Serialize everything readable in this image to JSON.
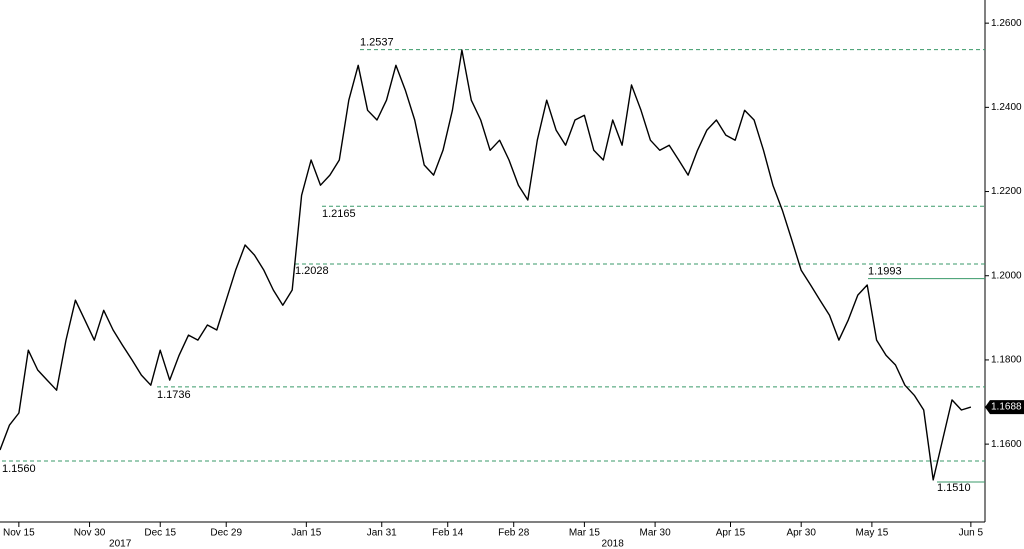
{
  "chart_data": {
    "type": "line",
    "series": [
      {
        "color": "#000000",
        "x": [
          "2017-11-11",
          "2017-11-13",
          "2017-11-15",
          "2017-11-17",
          "2017-11-19",
          "2017-11-21",
          "2017-11-23",
          "2017-11-25",
          "2017-11-27",
          "2017-11-29",
          "2017-12-01",
          "2017-12-03",
          "2017-12-05",
          "2017-12-07",
          "2017-12-09",
          "2017-12-11",
          "2017-12-13",
          "2017-12-15",
          "2017-12-17",
          "2017-12-19",
          "2017-12-21",
          "2017-12-23",
          "2017-12-25",
          "2017-12-27",
          "2017-12-29",
          "2017-12-31",
          "2018-01-02",
          "2018-01-04",
          "2018-01-06",
          "2018-01-08",
          "2018-01-10",
          "2018-01-12",
          "2018-01-14",
          "2018-01-16",
          "2018-01-18",
          "2018-01-20",
          "2018-01-22",
          "2018-01-24",
          "2018-01-26",
          "2018-01-28",
          "2018-01-30",
          "2018-02-01",
          "2018-02-03",
          "2018-02-05",
          "2018-02-07",
          "2018-02-09",
          "2018-02-11",
          "2018-02-13",
          "2018-02-15",
          "2018-02-17",
          "2018-02-19",
          "2018-02-21",
          "2018-02-23",
          "2018-02-25",
          "2018-02-27",
          "2018-03-01",
          "2018-03-03",
          "2018-03-05",
          "2018-03-07",
          "2018-03-09",
          "2018-03-11",
          "2018-03-13",
          "2018-03-15",
          "2018-03-17",
          "2018-03-19",
          "2018-03-21",
          "2018-03-23",
          "2018-03-25",
          "2018-03-27",
          "2018-03-29",
          "2018-03-31",
          "2018-04-02",
          "2018-04-04",
          "2018-04-06",
          "2018-04-08",
          "2018-04-10",
          "2018-04-12",
          "2018-04-14",
          "2018-04-16",
          "2018-04-18",
          "2018-04-20",
          "2018-04-22",
          "2018-04-24",
          "2018-04-26",
          "2018-04-28",
          "2018-04-30",
          "2018-05-02",
          "2018-05-04",
          "2018-05-06",
          "2018-05-08",
          "2018-05-10",
          "2018-05-12",
          "2018-05-14",
          "2018-05-16",
          "2018-05-18",
          "2018-05-20",
          "2018-05-22",
          "2018-05-24",
          "2018-05-26",
          "2018-05-28",
          "2018-05-30",
          "2018-06-01",
          "2018-06-03",
          "2018-06-05"
        ],
        "values": [
          1.1586,
          1.1645,
          1.1674,
          1.1823,
          1.1776,
          1.1752,
          1.1728,
          1.1847,
          1.1942,
          1.1895,
          1.1847,
          1.1918,
          1.1871,
          1.1835,
          1.18,
          1.1764,
          1.174,
          1.1823,
          1.1752,
          1.1811,
          1.1859,
          1.1847,
          1.1883,
          1.1871,
          1.1942,
          1.2013,
          1.2073,
          1.2049,
          1.2013,
          1.1966,
          1.193,
          1.1966,
          1.2191,
          1.2275,
          1.2215,
          1.2239,
          1.2275,
          1.2417,
          1.25,
          1.2393,
          1.237,
          1.2417,
          1.25,
          1.2441,
          1.237,
          1.2263,
          1.2239,
          1.2298,
          1.2393,
          1.2536,
          1.2417,
          1.237,
          1.2298,
          1.2322,
          1.2275,
          1.2215,
          1.218,
          1.2322,
          1.2417,
          1.2346,
          1.231,
          1.237,
          1.2381,
          1.2298,
          1.2275,
          1.237,
          1.231,
          1.2453,
          1.2393,
          1.2322,
          1.2298,
          1.231,
          1.2275,
          1.2239,
          1.2298,
          1.2346,
          1.237,
          1.2334,
          1.2322,
          1.2393,
          1.237,
          1.2298,
          1.2215,
          1.2156,
          1.2085,
          1.2013,
          1.1978,
          1.1942,
          1.1906,
          1.1847,
          1.1895,
          1.1954,
          1.1978,
          1.1847,
          1.1811,
          1.1788,
          1.174,
          1.1716,
          1.1681,
          1.1515,
          1.161,
          1.1705,
          1.1681,
          1.1688
        ]
      }
    ],
    "xlim": [
      "2017-11-11",
      "2018-06-08"
    ],
    "xticks": [
      {
        "value": "2017-11-15",
        "label": "Nov 15"
      },
      {
        "value": "2017-11-30",
        "label": "Nov 30"
      },
      {
        "value": "2017-12-15",
        "label": "Dec 15"
      },
      {
        "value": "2017-12-29",
        "label": "Dec 29"
      },
      {
        "value": "2018-01-15",
        "label": "Jan 15"
      },
      {
        "value": "2018-01-31",
        "label": "Jan 31"
      },
      {
        "value": "2018-02-14",
        "label": "Feb 14"
      },
      {
        "value": "2018-02-28",
        "label": "Feb 28"
      },
      {
        "value": "2018-03-15",
        "label": "Mar 15"
      },
      {
        "value": "2018-03-30",
        "label": "Mar 30"
      },
      {
        "value": "2018-04-15",
        "label": "Apr 15"
      },
      {
        "value": "2018-04-30",
        "label": "Apr 30"
      },
      {
        "value": "2018-05-15",
        "label": "May 15"
      },
      {
        "value": "2018-06-05",
        "label": "Jun 5"
      }
    ],
    "years": [
      2017,
      2018
    ],
    "ylim": [
      1.1415,
      1.2655
    ],
    "yticks": [
      {
        "value": 1.16,
        "label": "1.1600"
      },
      {
        "value": 1.18,
        "label": "1.1800"
      },
      {
        "value": 1.2,
        "label": "1.2000"
      },
      {
        "value": 1.22,
        "label": "1.2200"
      },
      {
        "value": 1.24,
        "label": "1.2400"
      },
      {
        "value": 1.26,
        "label": "1.2600"
      }
    ],
    "levels": [
      {
        "value": 1.2537,
        "label": "1.2537",
        "style": "dashed"
      },
      {
        "value": 1.2165,
        "label": "1.2165",
        "style": "dashed"
      },
      {
        "value": 1.2028,
        "label": "1.2028",
        "style": "dashed"
      },
      {
        "value": 1.1736,
        "label": "1.1736",
        "style": "dashed"
      },
      {
        "value": 1.156,
        "label": "1.1560",
        "style": "dashed"
      },
      {
        "value": 1.1993,
        "label": "1.1993",
        "style": "solid"
      },
      {
        "value": 1.151,
        "label": "1.1510",
        "style": "solid"
      }
    ],
    "level_color": "#3a9a6a",
    "last_price": {
      "value": 1.1688,
      "label": "1.1688"
    }
  }
}
